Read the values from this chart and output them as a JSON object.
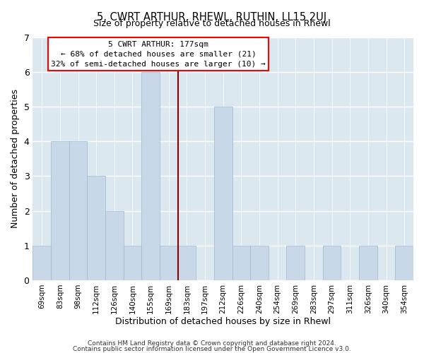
{
  "title": "5, CWRT ARTHUR, RHEWL, RUTHIN, LL15 2UJ",
  "subtitle": "Size of property relative to detached houses in Rhewl",
  "xlabel": "Distribution of detached houses by size in Rhewl",
  "ylabel": "Number of detached properties",
  "footer_line1": "Contains HM Land Registry data © Crown copyright and database right 2024.",
  "footer_line2": "Contains public sector information licensed under the Open Government Licence v3.0.",
  "bar_labels": [
    "69sqm",
    "83sqm",
    "98sqm",
    "112sqm",
    "126sqm",
    "140sqm",
    "155sqm",
    "169sqm",
    "183sqm",
    "197sqm",
    "212sqm",
    "226sqm",
    "240sqm",
    "254sqm",
    "269sqm",
    "283sqm",
    "297sqm",
    "311sqm",
    "326sqm",
    "340sqm",
    "354sqm"
  ],
  "bar_values": [
    1,
    4,
    4,
    3,
    2,
    1,
    6,
    1,
    1,
    0,
    5,
    1,
    1,
    0,
    1,
    0,
    1,
    0,
    1,
    0,
    1
  ],
  "bar_color": "#c8d8e8",
  "bar_edge_color": "#a0b8d0",
  "highlight_index": 7,
  "ylim": [
    0,
    7
  ],
  "yticks": [
    0,
    1,
    2,
    3,
    4,
    5,
    6,
    7
  ],
  "annotation_title": "5 CWRT ARTHUR: 177sqm",
  "annotation_line1": "← 68% of detached houses are smaller (21)",
  "annotation_line2": "32% of semi-detached houses are larger (10) →",
  "vline_color": "#8b0000",
  "bg_color": "#dce8f0"
}
